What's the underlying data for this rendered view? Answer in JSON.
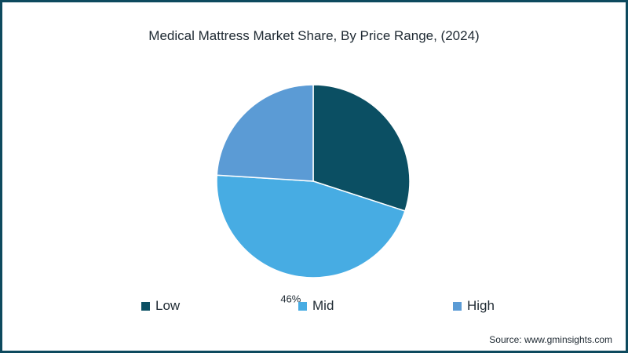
{
  "chart_data": {
    "type": "pie",
    "title": "Medical Mattress Market Share, By Price Range, (2024)",
    "categories": [
      "Low",
      "Mid",
      "High"
    ],
    "values": [
      30,
      46,
      24
    ],
    "data_labels": [
      "",
      "46%",
      ""
    ],
    "colors": [
      "#0b4f63",
      "#47ace3",
      "#5b9bd5"
    ],
    "legend_position": "bottom"
  },
  "source": "Source: www.gminsights.com"
}
